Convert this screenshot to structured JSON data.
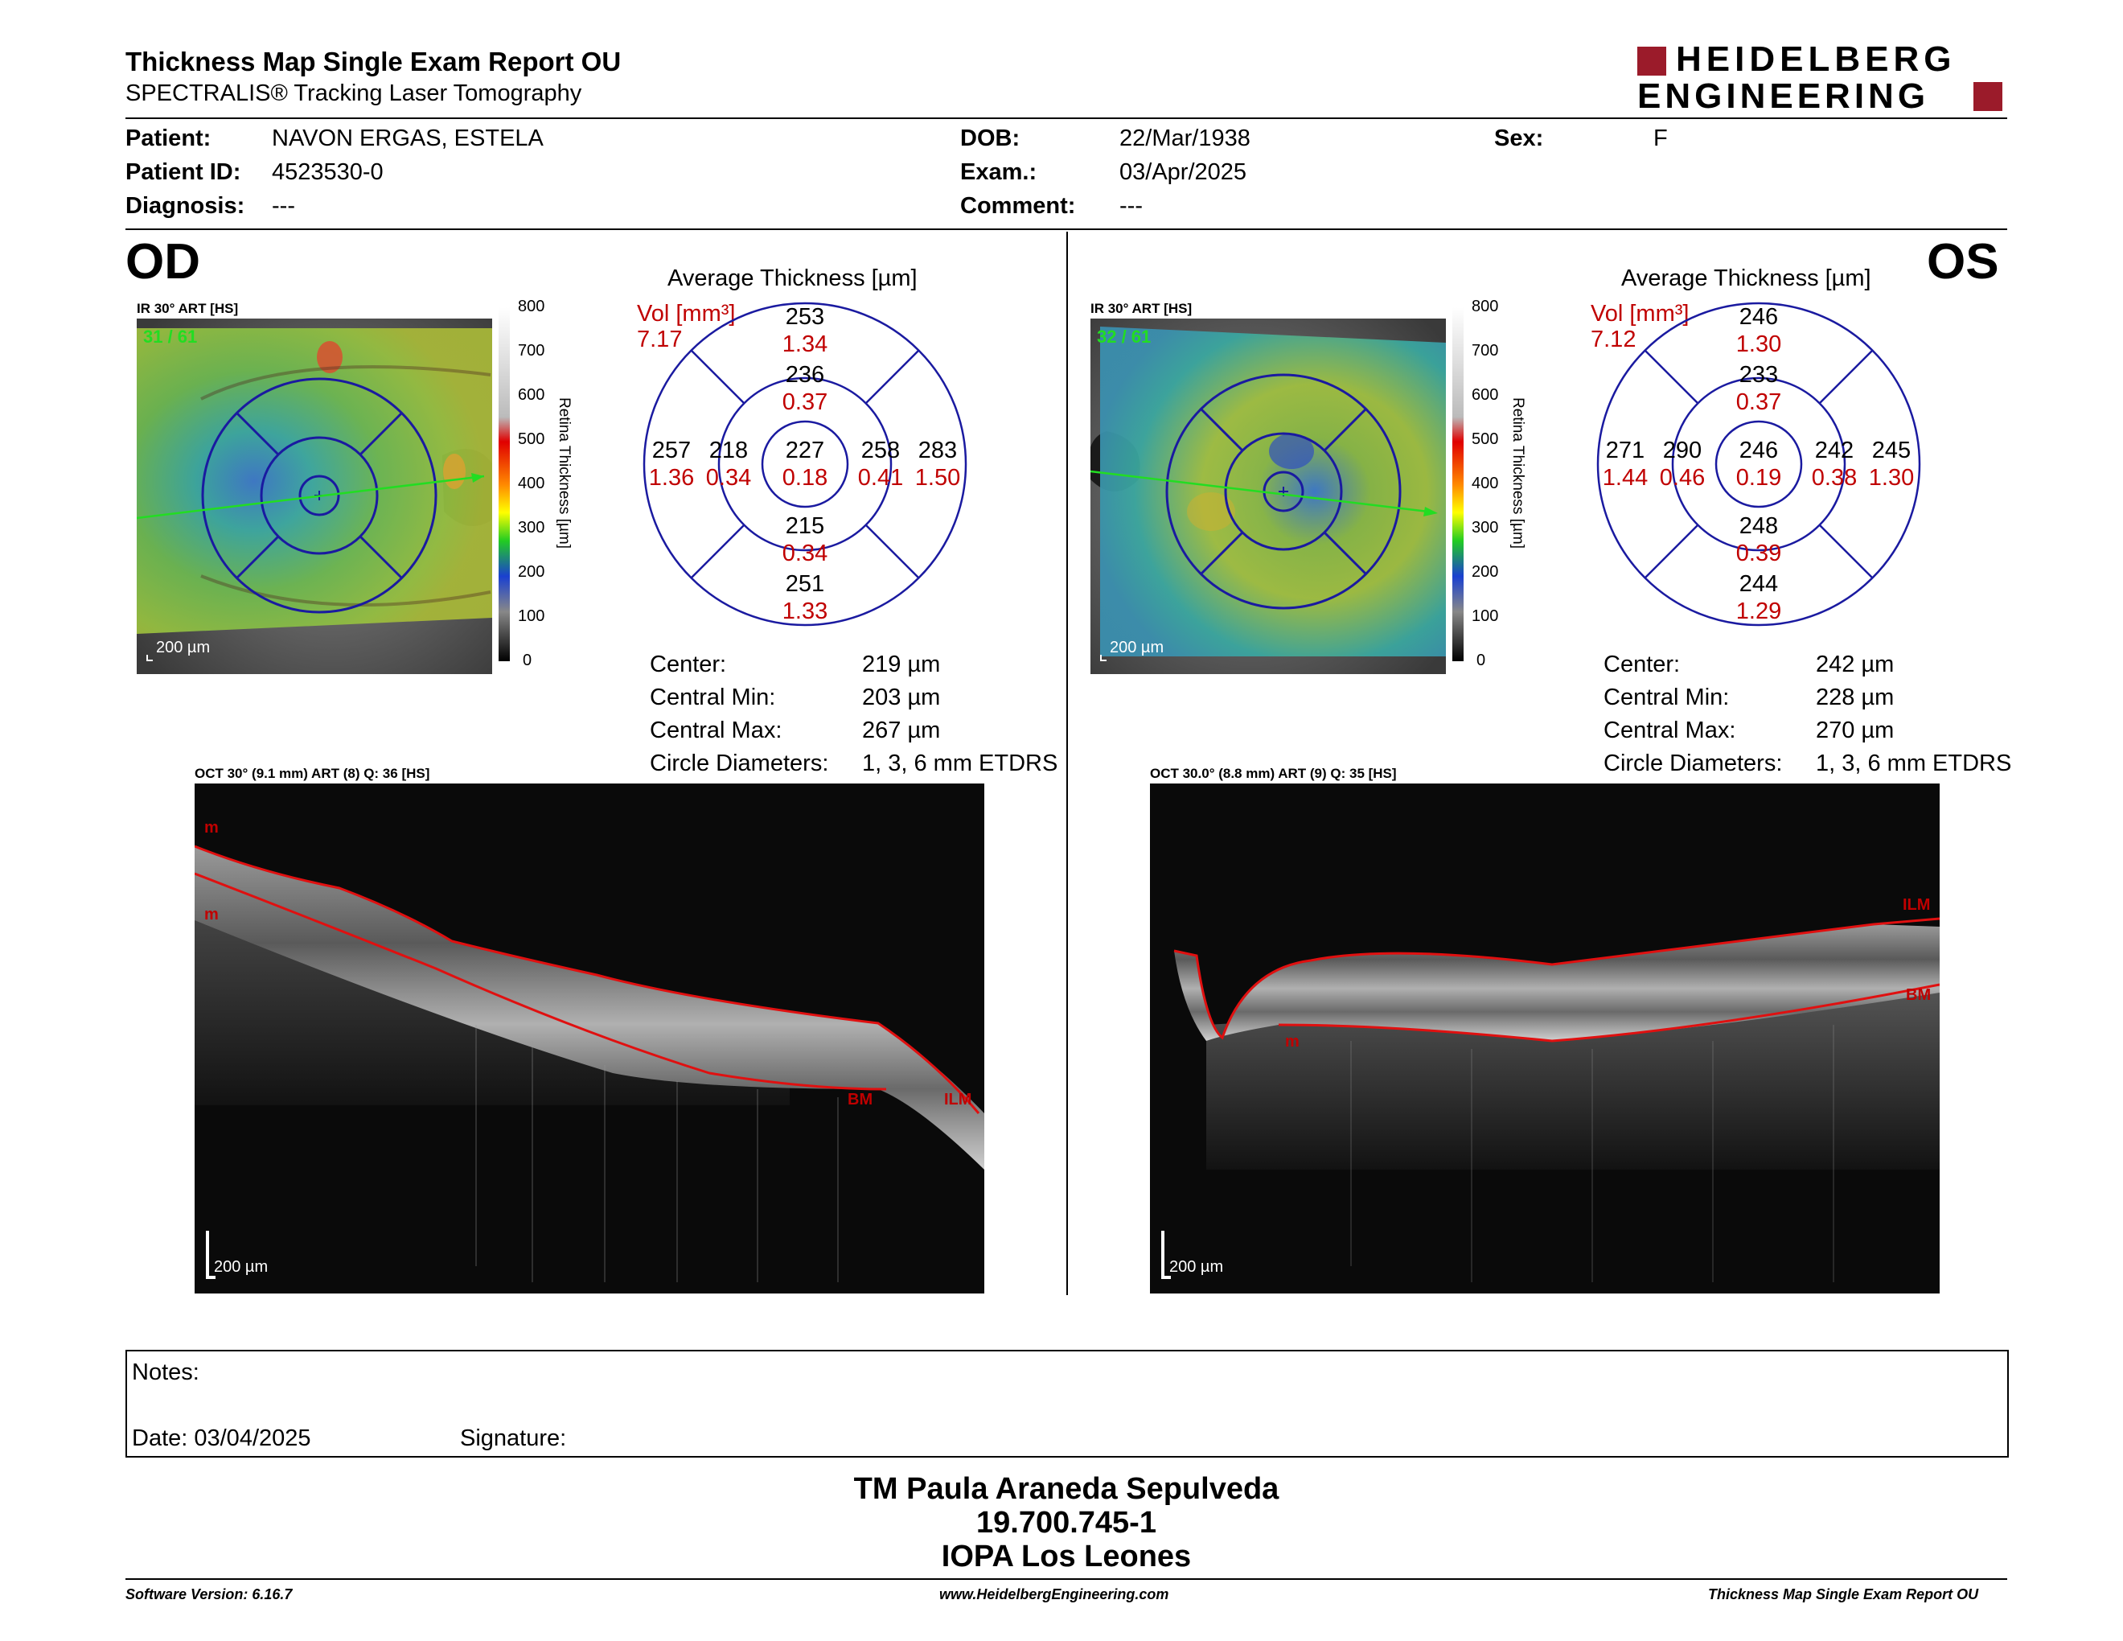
{
  "report": {
    "title": "Thickness Map Single Exam Report OU",
    "subtitle": "SPECTRALIS® Tracking Laser Tomography",
    "brand_line1": "HEIDELBERG",
    "brand_line2": "ENGINEERING"
  },
  "patient": {
    "patient_label": "Patient:",
    "patient_value": "NAVON ERGAS, ESTELA",
    "id_label": "Patient ID:",
    "id_value": "4523530-0",
    "diag_label": "Diagnosis:",
    "diag_value": "---",
    "dob_label": "DOB:",
    "dob_value": "22/Mar/1938",
    "exam_label": "Exam.:",
    "exam_value": "03/Apr/2025",
    "comment_label": "Comment:",
    "comment_value": "---",
    "sex_label": "Sex:",
    "sex_value": "F"
  },
  "colors": {
    "accent_red": "#9b1b2a",
    "value_red": "#c00000",
    "grid_blue": "#1a1aa0",
    "line_green": "#22dd22"
  },
  "od": {
    "eye": "OD",
    "ir_label": "IR 30° ART [HS]",
    "frame_count": "31 / 61",
    "scale_label": "200 µm",
    "colorbar_ticks": [
      "800",
      "700",
      "600",
      "500",
      "400",
      "300",
      "200",
      "100",
      "0"
    ],
    "colorbar_title": "Retina Thickness [µm]",
    "avg_title": "Average Thickness [µm]",
    "vol_label": "Vol [mm³]",
    "vol_value": "7.17",
    "grid": {
      "outer_sup": "253",
      "outer_sup_v": "1.34",
      "inner_sup": "236",
      "inner_sup_v": "0.37",
      "outer_temp": "257",
      "outer_temp_v": "1.36",
      "inner_temp": "218",
      "inner_temp_v": "0.34",
      "center": "227",
      "center_v": "0.18",
      "inner_nas": "258",
      "inner_nas_v": "0.41",
      "outer_nas": "283",
      "outer_nas_v": "1.50",
      "inner_inf": "215",
      "inner_inf_v": "0.34",
      "outer_inf": "251",
      "outer_inf_v": "1.33"
    },
    "stats": [
      {
        "label": "Center:",
        "value": "219 µm"
      },
      {
        "label": "Central Min:",
        "value": "203 µm"
      },
      {
        "label": "Central Max:",
        "value": "267 µm"
      },
      {
        "label": "Circle Diameters:",
        "value": "1, 3, 6 mm ETDRS"
      }
    ],
    "oct_label": "OCT 30° (9.1 mm) ART (8) Q: 36 [HS]",
    "oct_scale": "200 µm",
    "layer_labels": [
      "m",
      "m",
      "BM",
      "ILM"
    ]
  },
  "os": {
    "eye": "OS",
    "ir_label": "IR 30° ART [HS]",
    "frame_count": "32 / 61",
    "scale_label": "200 µm",
    "colorbar_ticks": [
      "800",
      "700",
      "600",
      "500",
      "400",
      "300",
      "200",
      "100",
      "0"
    ],
    "colorbar_title": "Retina Thickness [µm]",
    "avg_title": "Average Thickness [µm]",
    "vol_label": "Vol [mm³]",
    "vol_value": "7.12",
    "grid": {
      "outer_sup": "246",
      "outer_sup_v": "1.30",
      "inner_sup": "233",
      "inner_sup_v": "0.37",
      "outer_temp": "271",
      "outer_temp_v": "1.44",
      "inner_temp": "290",
      "inner_temp_v": "0.46",
      "center": "246",
      "center_v": "0.19",
      "inner_nas": "242",
      "inner_nas_v": "0.38",
      "outer_nas": "245",
      "outer_nas_v": "1.30",
      "inner_inf": "248",
      "inner_inf_v": "0.39",
      "outer_inf": "244",
      "outer_inf_v": "1.29"
    },
    "stats": [
      {
        "label": "Center:",
        "value": "242 µm"
      },
      {
        "label": "Central Min:",
        "value": "228 µm"
      },
      {
        "label": "Central Max:",
        "value": "270 µm"
      },
      {
        "label": "Circle Diameters:",
        "value": "1, 3, 6 mm ETDRS"
      }
    ],
    "oct_label": "OCT 30.0° (8.8 mm) ART (9) Q: 35 [HS]",
    "oct_scale": "200 µm",
    "layer_labels": [
      "ILM",
      "BM",
      "m"
    ]
  },
  "notes": {
    "notes_label": "Notes:",
    "date_label": "Date: 03/04/2025",
    "signature_label": "Signature:"
  },
  "signer": {
    "name": "TM Paula Araneda Sepulveda",
    "id": "19.700.745-1",
    "org": "IOPA Los Leones"
  },
  "footer": {
    "software": "Software Version: 6.16.7",
    "website": "www.HeidelbergEngineering.com",
    "report_name": "Thickness Map Single Exam Report OU"
  }
}
